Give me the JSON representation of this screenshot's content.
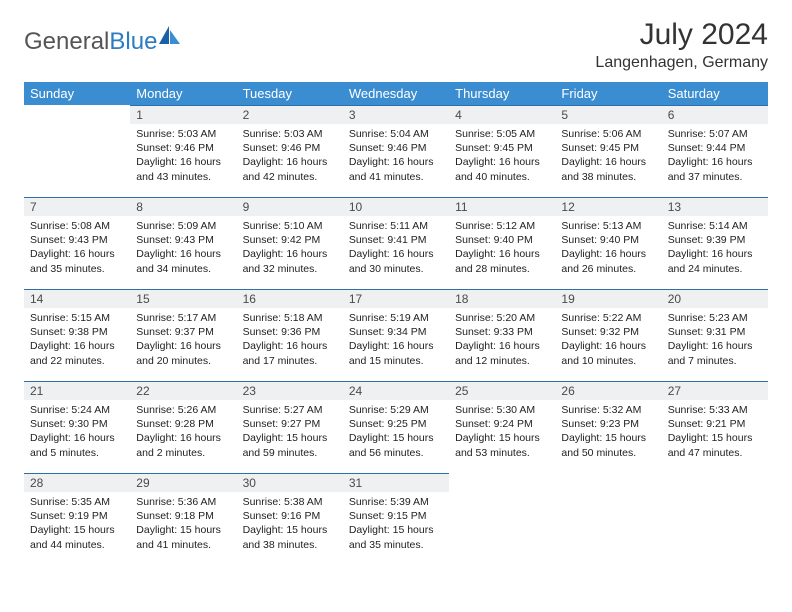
{
  "brand": {
    "part1": "General",
    "part2": "Blue"
  },
  "title": "July 2024",
  "location": "Langenhagen, Germany",
  "colors": {
    "header_bg": "#3b8dd1",
    "header_text": "#ffffff",
    "daynum_bg": "#eef0f1",
    "daynum_border": "#2f6fa7",
    "text": "#222222",
    "brand_gray": "#555555",
    "brand_blue": "#2b7cc2"
  },
  "day_labels": [
    "Sunday",
    "Monday",
    "Tuesday",
    "Wednesday",
    "Thursday",
    "Friday",
    "Saturday"
  ],
  "weeks": [
    [
      {
        "n": "",
        "sr": "",
        "ss": "",
        "dl": ""
      },
      {
        "n": "1",
        "sr": "Sunrise: 5:03 AM",
        "ss": "Sunset: 9:46 PM",
        "dl": "Daylight: 16 hours and 43 minutes."
      },
      {
        "n": "2",
        "sr": "Sunrise: 5:03 AM",
        "ss": "Sunset: 9:46 PM",
        "dl": "Daylight: 16 hours and 42 minutes."
      },
      {
        "n": "3",
        "sr": "Sunrise: 5:04 AM",
        "ss": "Sunset: 9:46 PM",
        "dl": "Daylight: 16 hours and 41 minutes."
      },
      {
        "n": "4",
        "sr": "Sunrise: 5:05 AM",
        "ss": "Sunset: 9:45 PM",
        "dl": "Daylight: 16 hours and 40 minutes."
      },
      {
        "n": "5",
        "sr": "Sunrise: 5:06 AM",
        "ss": "Sunset: 9:45 PM",
        "dl": "Daylight: 16 hours and 38 minutes."
      },
      {
        "n": "6",
        "sr": "Sunrise: 5:07 AM",
        "ss": "Sunset: 9:44 PM",
        "dl": "Daylight: 16 hours and 37 minutes."
      }
    ],
    [
      {
        "n": "7",
        "sr": "Sunrise: 5:08 AM",
        "ss": "Sunset: 9:43 PM",
        "dl": "Daylight: 16 hours and 35 minutes."
      },
      {
        "n": "8",
        "sr": "Sunrise: 5:09 AM",
        "ss": "Sunset: 9:43 PM",
        "dl": "Daylight: 16 hours and 34 minutes."
      },
      {
        "n": "9",
        "sr": "Sunrise: 5:10 AM",
        "ss": "Sunset: 9:42 PM",
        "dl": "Daylight: 16 hours and 32 minutes."
      },
      {
        "n": "10",
        "sr": "Sunrise: 5:11 AM",
        "ss": "Sunset: 9:41 PM",
        "dl": "Daylight: 16 hours and 30 minutes."
      },
      {
        "n": "11",
        "sr": "Sunrise: 5:12 AM",
        "ss": "Sunset: 9:40 PM",
        "dl": "Daylight: 16 hours and 28 minutes."
      },
      {
        "n": "12",
        "sr": "Sunrise: 5:13 AM",
        "ss": "Sunset: 9:40 PM",
        "dl": "Daylight: 16 hours and 26 minutes."
      },
      {
        "n": "13",
        "sr": "Sunrise: 5:14 AM",
        "ss": "Sunset: 9:39 PM",
        "dl": "Daylight: 16 hours and 24 minutes."
      }
    ],
    [
      {
        "n": "14",
        "sr": "Sunrise: 5:15 AM",
        "ss": "Sunset: 9:38 PM",
        "dl": "Daylight: 16 hours and 22 minutes."
      },
      {
        "n": "15",
        "sr": "Sunrise: 5:17 AM",
        "ss": "Sunset: 9:37 PM",
        "dl": "Daylight: 16 hours and 20 minutes."
      },
      {
        "n": "16",
        "sr": "Sunrise: 5:18 AM",
        "ss": "Sunset: 9:36 PM",
        "dl": "Daylight: 16 hours and 17 minutes."
      },
      {
        "n": "17",
        "sr": "Sunrise: 5:19 AM",
        "ss": "Sunset: 9:34 PM",
        "dl": "Daylight: 16 hours and 15 minutes."
      },
      {
        "n": "18",
        "sr": "Sunrise: 5:20 AM",
        "ss": "Sunset: 9:33 PM",
        "dl": "Daylight: 16 hours and 12 minutes."
      },
      {
        "n": "19",
        "sr": "Sunrise: 5:22 AM",
        "ss": "Sunset: 9:32 PM",
        "dl": "Daylight: 16 hours and 10 minutes."
      },
      {
        "n": "20",
        "sr": "Sunrise: 5:23 AM",
        "ss": "Sunset: 9:31 PM",
        "dl": "Daylight: 16 hours and 7 minutes."
      }
    ],
    [
      {
        "n": "21",
        "sr": "Sunrise: 5:24 AM",
        "ss": "Sunset: 9:30 PM",
        "dl": "Daylight: 16 hours and 5 minutes."
      },
      {
        "n": "22",
        "sr": "Sunrise: 5:26 AM",
        "ss": "Sunset: 9:28 PM",
        "dl": "Daylight: 16 hours and 2 minutes."
      },
      {
        "n": "23",
        "sr": "Sunrise: 5:27 AM",
        "ss": "Sunset: 9:27 PM",
        "dl": "Daylight: 15 hours and 59 minutes."
      },
      {
        "n": "24",
        "sr": "Sunrise: 5:29 AM",
        "ss": "Sunset: 9:25 PM",
        "dl": "Daylight: 15 hours and 56 minutes."
      },
      {
        "n": "25",
        "sr": "Sunrise: 5:30 AM",
        "ss": "Sunset: 9:24 PM",
        "dl": "Daylight: 15 hours and 53 minutes."
      },
      {
        "n": "26",
        "sr": "Sunrise: 5:32 AM",
        "ss": "Sunset: 9:23 PM",
        "dl": "Daylight: 15 hours and 50 minutes."
      },
      {
        "n": "27",
        "sr": "Sunrise: 5:33 AM",
        "ss": "Sunset: 9:21 PM",
        "dl": "Daylight: 15 hours and 47 minutes."
      }
    ],
    [
      {
        "n": "28",
        "sr": "Sunrise: 5:35 AM",
        "ss": "Sunset: 9:19 PM",
        "dl": "Daylight: 15 hours and 44 minutes."
      },
      {
        "n": "29",
        "sr": "Sunrise: 5:36 AM",
        "ss": "Sunset: 9:18 PM",
        "dl": "Daylight: 15 hours and 41 minutes."
      },
      {
        "n": "30",
        "sr": "Sunrise: 5:38 AM",
        "ss": "Sunset: 9:16 PM",
        "dl": "Daylight: 15 hours and 38 minutes."
      },
      {
        "n": "31",
        "sr": "Sunrise: 5:39 AM",
        "ss": "Sunset: 9:15 PM",
        "dl": "Daylight: 15 hours and 35 minutes."
      },
      {
        "n": "",
        "sr": "",
        "ss": "",
        "dl": ""
      },
      {
        "n": "",
        "sr": "",
        "ss": "",
        "dl": ""
      },
      {
        "n": "",
        "sr": "",
        "ss": "",
        "dl": ""
      }
    ]
  ]
}
